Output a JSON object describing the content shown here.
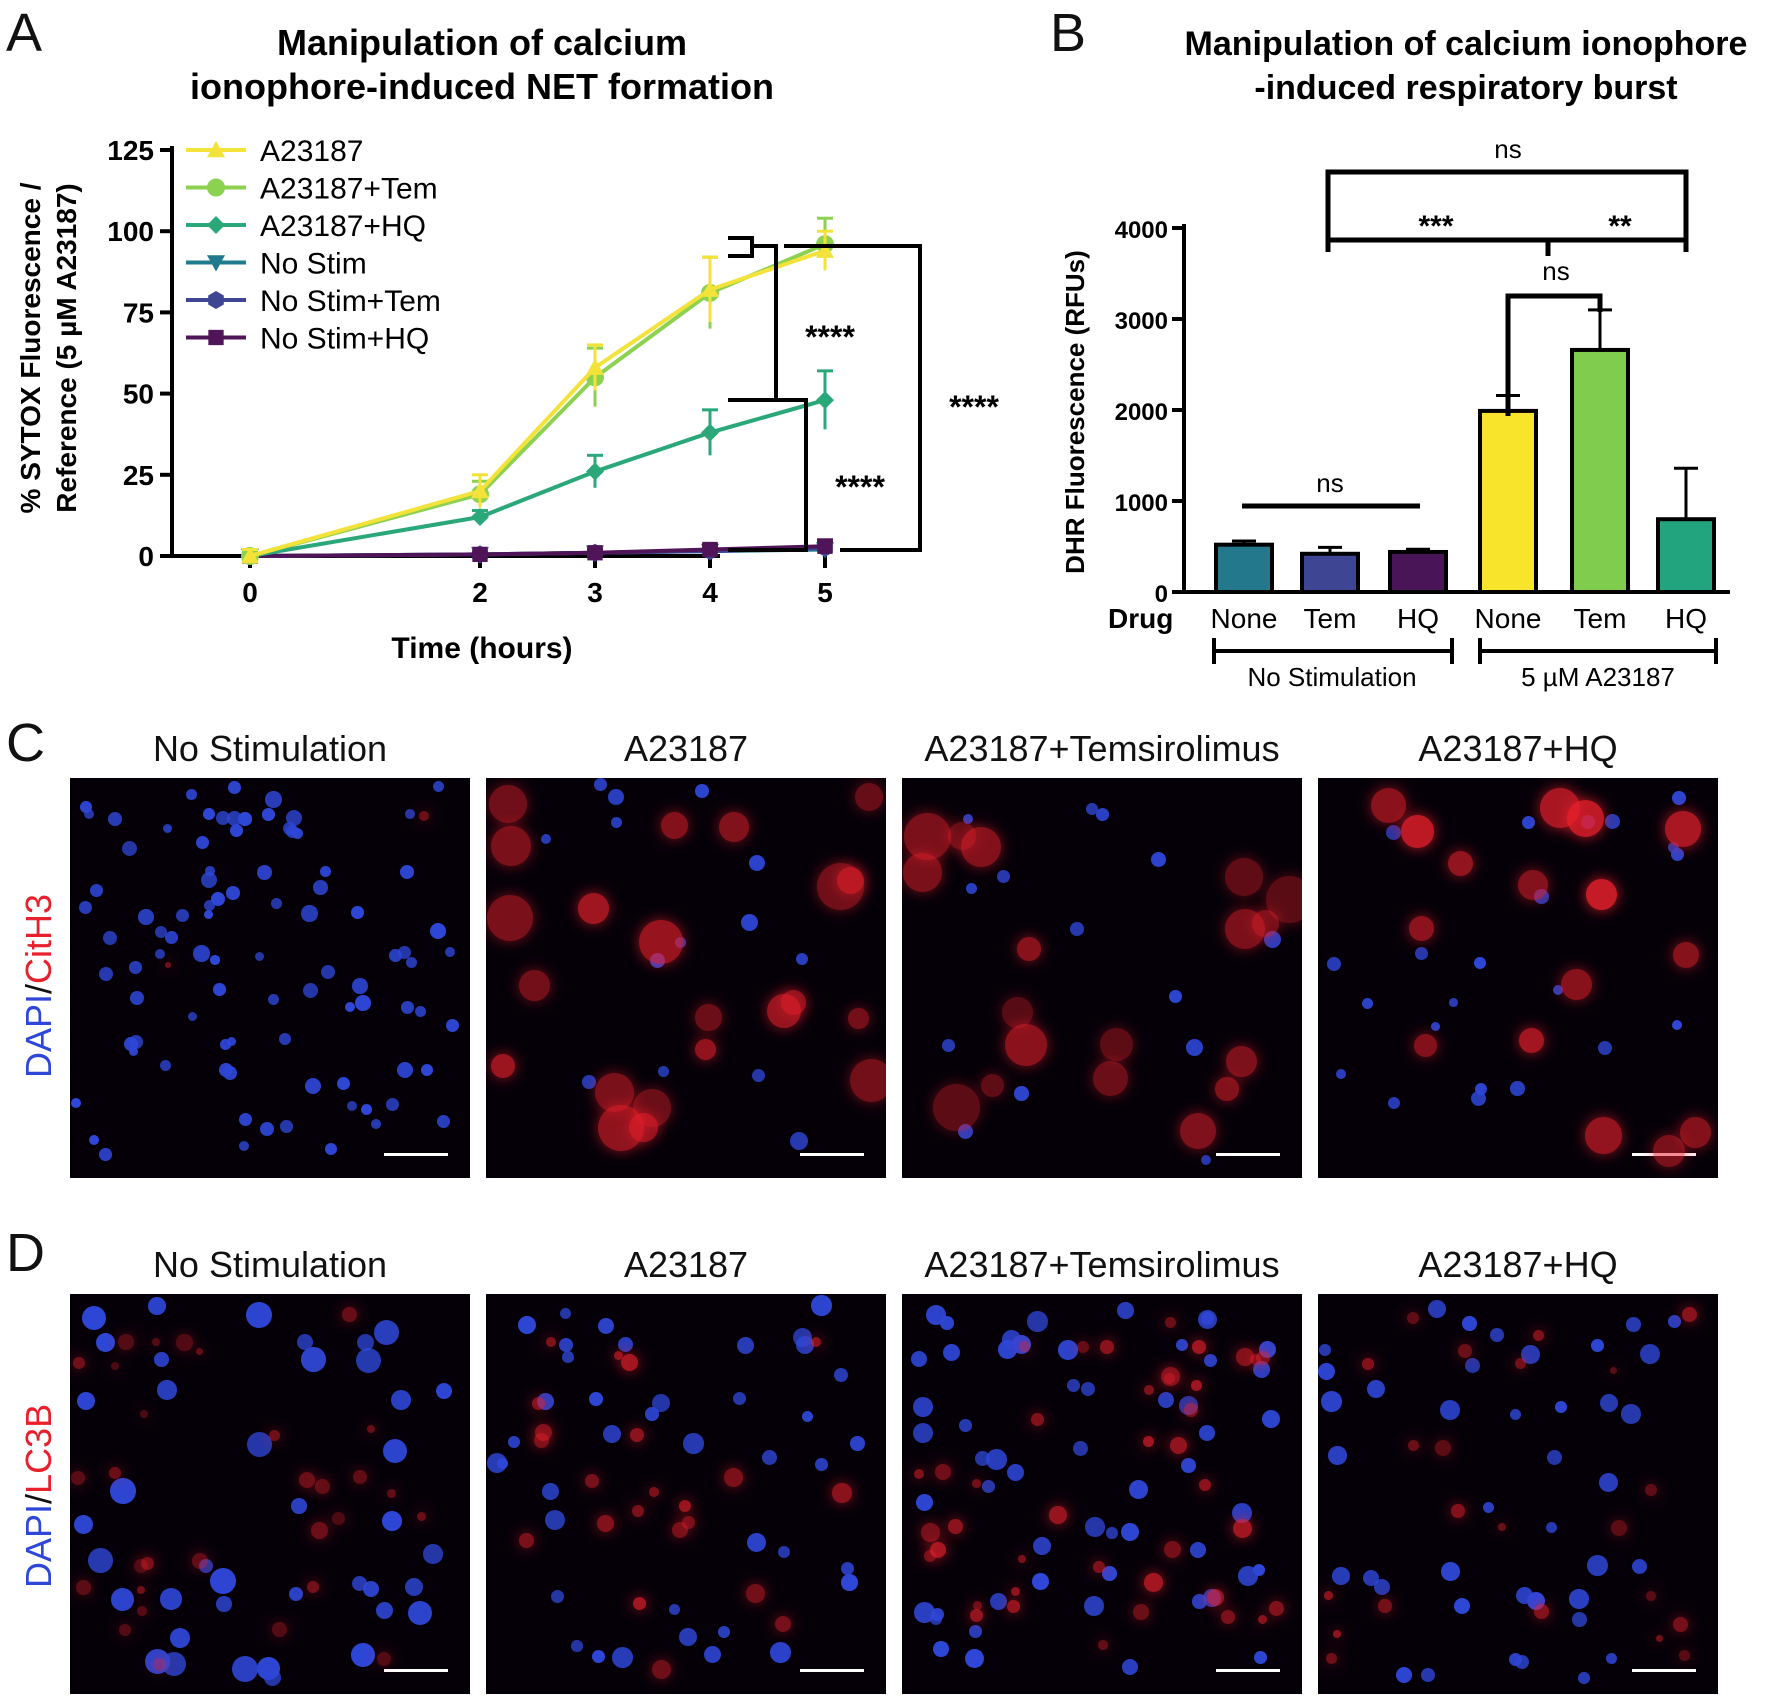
{
  "panel_letters": {
    "a": "A",
    "b": "B",
    "c": "C",
    "d": "D"
  },
  "chart_data": [
    {
      "type": "line",
      "panel": "A",
      "title_line1": "Manipulation of calcium",
      "title_line2": "ionophore-induced NET formation",
      "xlabel": "Time (hours)",
      "ylabel_line1": "% SYTOX Fluorescence /",
      "ylabel_line2": "Reference (5 µM A23187)",
      "x": [
        0,
        2,
        3,
        4,
        5
      ],
      "xticks": [
        "0",
        "2",
        "3",
        "4",
        "5"
      ],
      "ylim": [
        0,
        125
      ],
      "yticks": [
        "0",
        "25",
        "50",
        "75",
        "100",
        "125"
      ],
      "series": [
        {
          "name": "A23187",
          "color": "#f2e23a",
          "marker": "triangle",
          "values": [
            0,
            20,
            58,
            82,
            94
          ],
          "err": [
            2,
            5,
            7,
            10,
            6
          ]
        },
        {
          "name": "A23187+Tem",
          "color": "#8cd14f",
          "marker": "circle",
          "values": [
            0,
            19,
            55,
            81,
            96
          ],
          "err": [
            2,
            4,
            9,
            11,
            8
          ]
        },
        {
          "name": "A23187+HQ",
          "color": "#2aa87a",
          "marker": "diamond",
          "values": [
            0,
            12,
            26,
            38,
            48
          ],
          "err": [
            1,
            2,
            5,
            7,
            9
          ]
        },
        {
          "name": "No Stim",
          "color": "#1e7a8c",
          "marker": "triangle-down",
          "values": [
            0,
            0.5,
            1,
            1.5,
            2
          ],
          "err": [
            0.5,
            0.5,
            1,
            1,
            2
          ]
        },
        {
          "name": "No Stim+Tem",
          "color": "#3e4592",
          "marker": "hexagon",
          "values": [
            0,
            0.5,
            1,
            1.5,
            2.5
          ],
          "err": [
            0.5,
            0.5,
            1,
            1.5,
            2
          ]
        },
        {
          "name": "No Stim+HQ",
          "color": "#4f1558",
          "marker": "square",
          "values": [
            0,
            0.5,
            1,
            2,
            3
          ],
          "err": [
            0.5,
            0.5,
            1,
            1.5,
            2
          ]
        }
      ],
      "annotations": [
        "****",
        "****",
        "****"
      ]
    },
    {
      "type": "bar",
      "panel": "B",
      "title_line1": "Manipulation of calcium ionophore",
      "title_line2": "-induced respiratory burst",
      "ylabel": "DHR Fluorescence (RFUs)",
      "ylim": [
        0,
        4000
      ],
      "yticks": [
        "0",
        "1000",
        "2000",
        "3000",
        "4000"
      ],
      "row_label": "Drug",
      "categories": [
        "None",
        "Tem",
        "HQ",
        "None",
        "Tem",
        "HQ"
      ],
      "values": [
        520,
        420,
        440,
        1990,
        2660,
        800
      ],
      "err": [
        40,
        70,
        30,
        170,
        440,
        560
      ],
      "colors": [
        "#23788b",
        "#3e4592",
        "#4a1557",
        "#f7e42b",
        "#7fcc4e",
        "#22a57e"
      ],
      "groups": [
        "No Stimulation",
        "5 µM A23187"
      ],
      "annotations": [
        "ns",
        "***",
        "**",
        "ns",
        "ns"
      ]
    }
  ],
  "micrographs": {
    "row_c": {
      "stain_a": "DAPI",
      "separator": "/",
      "stain_b": "CitH3",
      "titles": [
        "No Stimulation",
        "A23187",
        "A23187+Temsirolimus",
        "A23187+HQ"
      ]
    },
    "row_d": {
      "stain_a": "DAPI",
      "separator": "/",
      "stain_b": "LC3B",
      "titles": [
        "No Stimulation",
        "A23187",
        "A23187+Temsirolimus",
        "A23187+HQ"
      ]
    },
    "colors": {
      "dapi": "#2f47d8",
      "red_stain": "#e8202c"
    }
  }
}
